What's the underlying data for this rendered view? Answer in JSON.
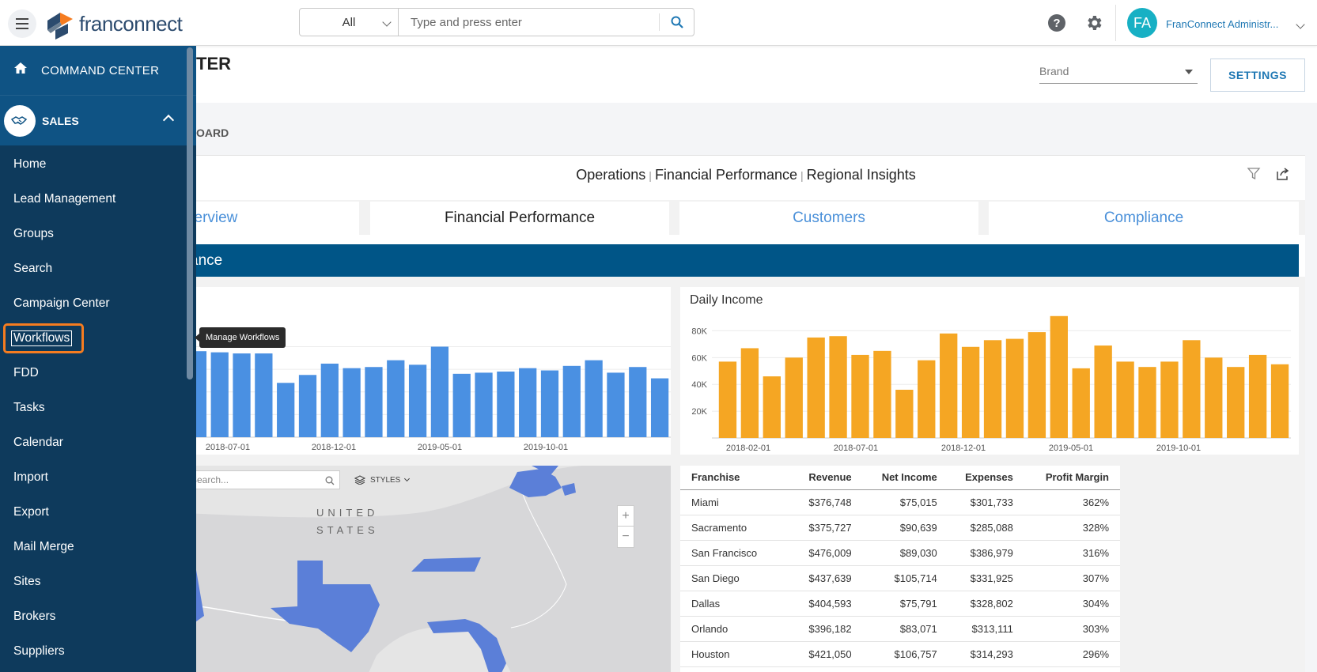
{
  "topbar": {
    "logo_text": "franconnect",
    "search_category": "All",
    "search_placeholder": "Type and press enter",
    "user_initials": "FA",
    "user_name": "FranConnect Administr..."
  },
  "page": {
    "title_fragment": "TER",
    "brand_select": "Brand",
    "settings_label": "SETTINGS",
    "dashboard_label_fragment": "OARD"
  },
  "dashboard": {
    "title_parts": [
      "Operations",
      "Financial Performance",
      "Regional Insights"
    ],
    "subtabs": [
      {
        "label": "verview",
        "active": false
      },
      {
        "label": "Financial Performance",
        "active": true
      },
      {
        "label": "Customers",
        "active": false
      },
      {
        "label": "Compliance",
        "active": false
      }
    ],
    "section_title_fragment": "ance"
  },
  "sidebar": {
    "command_center": "COMMAND CENTER",
    "module": "SALES",
    "items": [
      "Home",
      "Lead Management",
      "Groups",
      "Search",
      "Campaign Center",
      "Workflows",
      "FDD",
      "Tasks",
      "Calendar",
      "Import",
      "Export",
      "Mail Merge",
      "Sites",
      "Brokers",
      "Suppliers"
    ],
    "highlighted_index": 5
  },
  "tooltip": "Manage Workflows",
  "map": {
    "search_placeholder": "Search...",
    "styles_label": "STYLES",
    "country_label_1": "UNITED",
    "country_label_2": "STATES",
    "zoom_in": "+",
    "zoom_out": "−"
  },
  "chart_data": [
    {
      "type": "bar",
      "title": "",
      "color": "#4a90e2",
      "x_ticks": [
        "2018-07-01",
        "2018-12-01",
        "2019-05-01",
        "2019-10-01"
      ],
      "values": [
        76000,
        75000,
        74000,
        74000,
        48000,
        55000,
        65000,
        61000,
        62000,
        68000,
        64000,
        80000,
        56000,
        57000,
        58000,
        61000,
        59000,
        63000,
        68000,
        57000,
        62000,
        52000
      ]
    },
    {
      "type": "bar",
      "title": "Daily Income",
      "color": "#f5a623",
      "y_ticks": [
        "20K",
        "40K",
        "60K",
        "80K"
      ],
      "ylim": [
        0,
        95000
      ],
      "x_ticks": [
        "2018-02-01",
        "2018-07-01",
        "2018-12-01",
        "2019-05-01",
        "2019-10-01"
      ],
      "values": [
        57000,
        67000,
        46000,
        60000,
        75000,
        76000,
        62000,
        65000,
        36000,
        58000,
        78000,
        68000,
        73000,
        74000,
        79000,
        91000,
        52000,
        69000,
        57000,
        53000,
        57000,
        73000,
        60000,
        53000,
        62000,
        55000
      ]
    },
    {
      "type": "table",
      "columns": [
        "Franchise",
        "Revenue",
        "Net Income",
        "Expenses",
        "Profit Margin"
      ],
      "rows": [
        [
          "Miami",
          "$376,748",
          "$75,015",
          "$301,733",
          "362%"
        ],
        [
          "Sacramento",
          "$375,727",
          "$90,639",
          "$285,088",
          "328%"
        ],
        [
          "San Francisco",
          "$476,009",
          "$89,030",
          "$386,979",
          "316%"
        ],
        [
          "San Diego",
          "$437,639",
          "$105,714",
          "$331,925",
          "307%"
        ],
        [
          "Dallas",
          "$404,593",
          "$75,791",
          "$328,802",
          "304%"
        ],
        [
          "Orlando",
          "$396,182",
          "$83,071",
          "$313,111",
          "303%"
        ],
        [
          "Houston",
          "$421,050",
          "$106,757",
          "$314,293",
          "296%"
        ]
      ]
    }
  ]
}
